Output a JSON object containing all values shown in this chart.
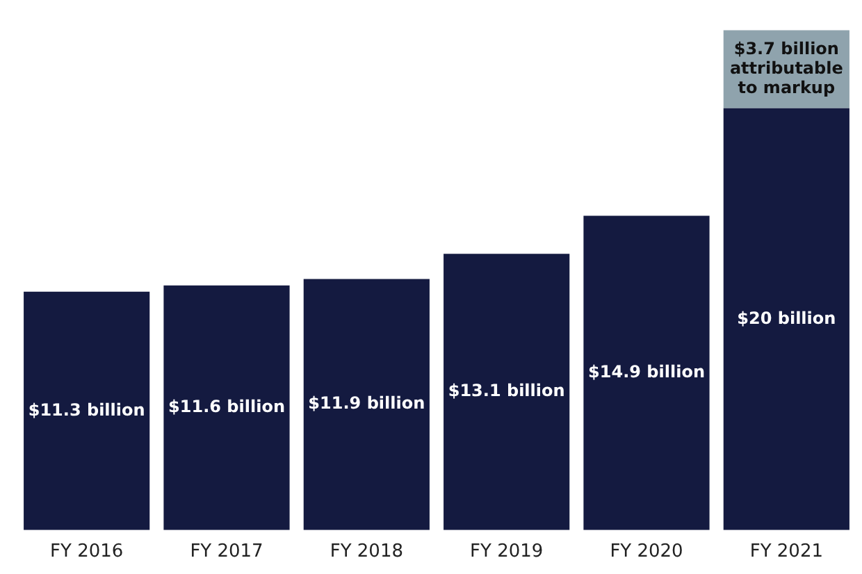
{
  "chart_data": {
    "type": "bar",
    "stacked": true,
    "relative": false,
    "legend": false,
    "grid": false,
    "categories": [
      "FY 2016",
      "FY 2017",
      "FY 2018",
      "FY 2019",
      "FY 2020",
      "FY 2021"
    ],
    "series": [
      {
        "color": "#141a40",
        "values": [
          11.3,
          11.6,
          11.9,
          13.1,
          14.9,
          20
        ],
        "value_labels": [
          "$11.3 billion",
          "$11.6 billion",
          "$11.9 billion",
          "$13.1 billion",
          "$14.9 billion",
          "$20 billion"
        ]
      },
      {
        "color": "#8fa3ad",
        "values": [
          null,
          null,
          null,
          null,
          null,
          3.7
        ],
        "value_labels": [
          null,
          null,
          null,
          null,
          null,
          "$3.7 billion attributable to markup"
        ]
      }
    ]
  }
}
